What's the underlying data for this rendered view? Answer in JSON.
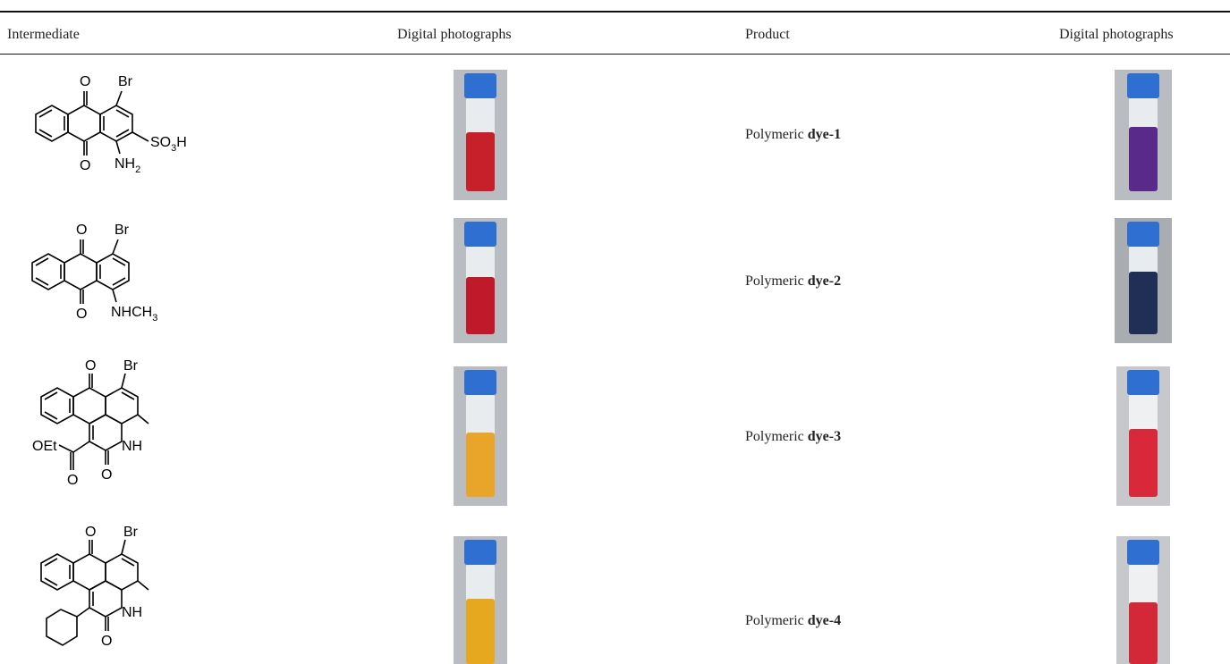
{
  "table": {
    "headers": [
      "Intermediate",
      "Digital photographs",
      "Product",
      "Digital photographs"
    ],
    "rows": [
      {
        "intermediate_labels": [
          "O",
          "Br",
          "O",
          "SO3H",
          "NH2"
        ],
        "product_prefix": "Polymeric",
        "product_name": "dye-1",
        "vial_intermediate_color": "#c8202a",
        "vial_product_color": "#5a2a8a"
      },
      {
        "intermediate_labels": [
          "O",
          "Br",
          "O",
          "NHCH3"
        ],
        "product_prefix": "Polymeric",
        "product_name": "dye-2",
        "vial_intermediate_color": "#c01a2a",
        "vial_product_color": "#1f2f55"
      },
      {
        "intermediate_labels": [
          "O",
          "Br",
          "OEt",
          "NH",
          "O",
          "O"
        ],
        "product_prefix": "Polymeric",
        "product_name": "dye-3",
        "vial_intermediate_color": "#e8a52a",
        "vial_product_color": "#d8283a"
      },
      {
        "intermediate_labels": [
          "O",
          "Br",
          "NH",
          "O"
        ],
        "product_prefix": "Polymeric",
        "product_name": "dye-4",
        "vial_intermediate_color": "#e6a81e",
        "vial_product_color": "#d22838"
      }
    ]
  },
  "colors": {
    "cap": "#2f6fd1",
    "glass": "#e9ecef",
    "background_photo": "#b9bcc0"
  }
}
